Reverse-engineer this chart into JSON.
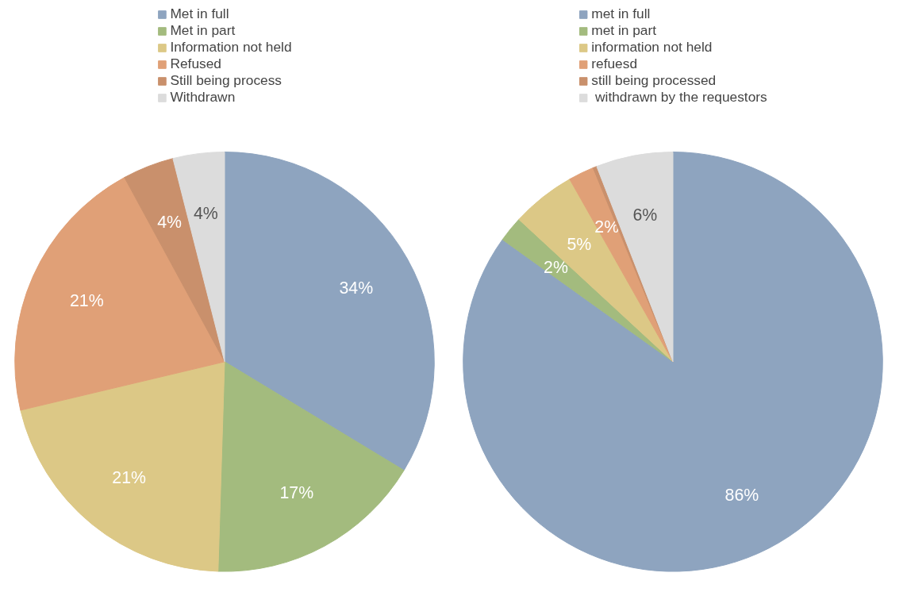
{
  "chart_data": [
    {
      "type": "pie",
      "categories": [
        "Met in full",
        "Met in part",
        "Information not held",
        "Refused",
        "Still being process",
        "Withdrawn"
      ],
      "values": [
        34,
        17,
        21,
        21,
        4,
        4
      ],
      "value_labels": [
        "34%",
        "17%",
        "21%",
        "21%",
        "4%",
        "4%"
      ],
      "colors": [
        "#8ea4bf",
        "#a3bb7e",
        "#dcc886",
        "#e0a077",
        "#c9906c",
        "#dcdcdc"
      ],
      "legend": "top"
    },
    {
      "type": "pie",
      "categories": [
        "met in full",
        "met in part",
        "information not held",
        "refuesd",
        "still being processed",
        " withdrawn by the requestors"
      ],
      "values": [
        86,
        2,
        5,
        2,
        0.3,
        6
      ],
      "value_labels": [
        "86%",
        "2%",
        "5%",
        "2%",
        null,
        "6%"
      ],
      "colors": [
        "#8ea4bf",
        "#a3bb7e",
        "#dcc886",
        "#e0a077",
        "#c9906c",
        "#dcdcdc"
      ],
      "legend": "top"
    }
  ]
}
